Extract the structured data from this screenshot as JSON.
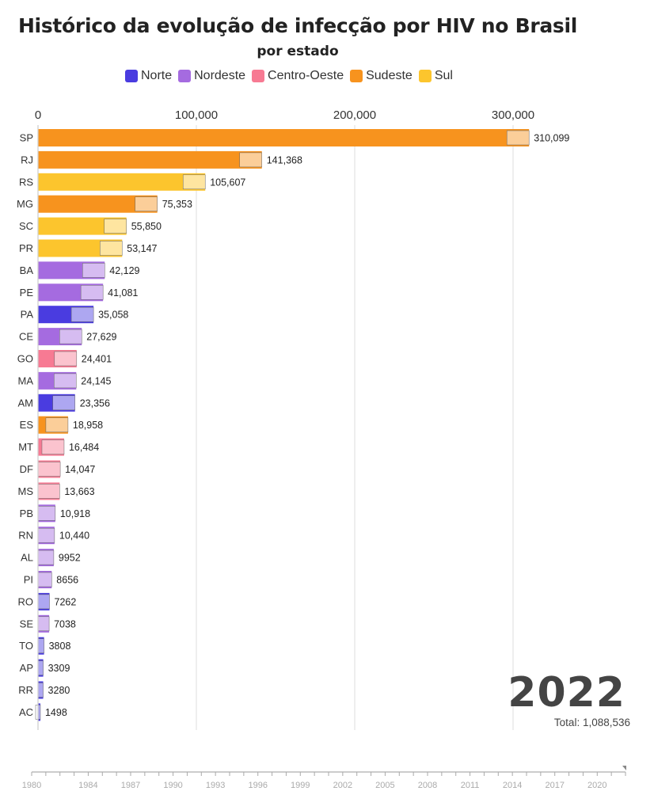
{
  "title": "Histórico da evolução de infecção por HIV no Brasil",
  "subtitle": "por estado",
  "legend": [
    {
      "label": "Norte",
      "color": "#4a3ce0"
    },
    {
      "label": "Nordeste",
      "color": "#a56be0"
    },
    {
      "label": "Centro-Oeste",
      "color": "#f77a93"
    },
    {
      "label": "Sudeste",
      "color": "#f7931e"
    },
    {
      "label": "Sul",
      "color": "#fcc52d"
    }
  ],
  "year": "2022",
  "total_label": "Total: 1,088,536",
  "timeline": {
    "labels": [
      "1980",
      "1984",
      "1987",
      "1990",
      "1993",
      "1996",
      "1999",
      "2002",
      "2005",
      "2008",
      "2011",
      "2014",
      "2017",
      "2020"
    ]
  },
  "chart_data": {
    "type": "bar",
    "orientation": "horizontal",
    "xlim": [
      0,
      370000
    ],
    "x_ticks": [
      0,
      100000,
      200000,
      300000
    ],
    "x_tick_labels": [
      "0",
      "100,000",
      "200,000",
      "300,000"
    ],
    "grid": true,
    "legend_position": "top",
    "categories": [
      "SP",
      "RJ",
      "RS",
      "MG",
      "SC",
      "PR",
      "BA",
      "PE",
      "PA",
      "CE",
      "GO",
      "MA",
      "AM",
      "ES",
      "MT",
      "DF",
      "MS",
      "PB",
      "RN",
      "AL",
      "PI",
      "RO",
      "SE",
      "TO",
      "AP",
      "RR",
      "AC"
    ],
    "values": [
      310099,
      141368,
      105607,
      75353,
      55850,
      53147,
      42129,
      41081,
      35058,
      27629,
      24401,
      24145,
      23356,
      18958,
      16484,
      14047,
      13663,
      10918,
      10440,
      9952,
      8656,
      7262,
      7038,
      3808,
      3309,
      3280,
      1498
    ],
    "value_labels": [
      "310,099",
      "141,368",
      "105,607",
      "75,353",
      "55,850",
      "53,147",
      "42,129",
      "41,081",
      "35,058",
      "27,629",
      "24,401",
      "24,145",
      "23,356",
      "18,958",
      "16,484",
      "14,047",
      "13,663",
      "10,918",
      "10,440",
      "9952",
      "8656",
      "7262",
      "7038",
      "3808",
      "3309",
      "3280",
      "1498"
    ],
    "regions": [
      "Sudeste",
      "Sudeste",
      "Sul",
      "Sudeste",
      "Sul",
      "Sul",
      "Nordeste",
      "Nordeste",
      "Norte",
      "Nordeste",
      "Centro-Oeste",
      "Nordeste",
      "Norte",
      "Sudeste",
      "Centro-Oeste",
      "Centro-Oeste",
      "Centro-Oeste",
      "Nordeste",
      "Nordeste",
      "Nordeste",
      "Nordeste",
      "Norte",
      "Nordeste",
      "Norte",
      "Norte",
      "Norte",
      "Norte"
    ]
  }
}
